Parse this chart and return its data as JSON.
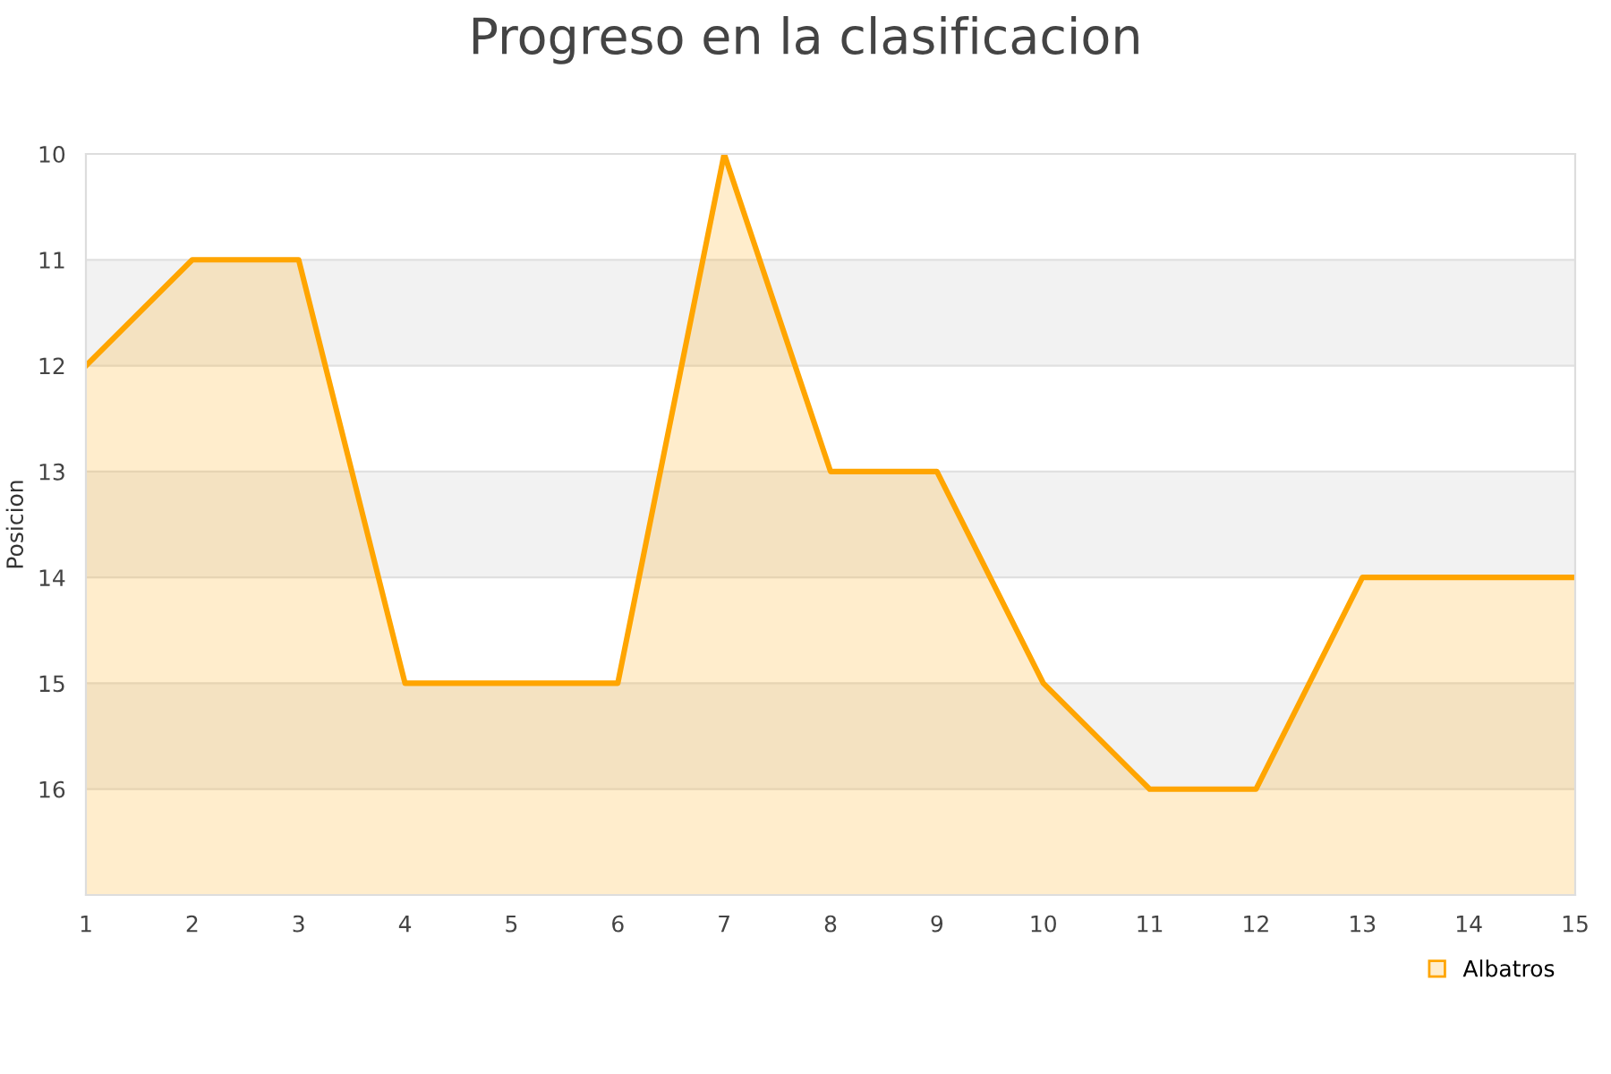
{
  "chart_data": {
    "type": "area",
    "title": "Progreso en la clasificacion",
    "ylabel": "Posicion",
    "x": [
      1,
      2,
      3,
      4,
      5,
      6,
      7,
      8,
      9,
      10,
      11,
      12,
      13,
      14,
      15
    ],
    "series": [
      {
        "name": "Albatros",
        "color": "#ffa500",
        "values": [
          12,
          11,
          11,
          15,
          15,
          15,
          10,
          13,
          13,
          15,
          16,
          16,
          14,
          14,
          14
        ]
      }
    ],
    "xlim": [
      1,
      15
    ],
    "xticks": [
      1,
      2,
      3,
      4,
      5,
      6,
      7,
      8,
      9,
      10,
      11,
      12,
      13,
      14,
      15
    ],
    "ylim": [
      17,
      10
    ],
    "yticks": [
      10,
      11,
      12,
      13,
      14,
      15,
      16
    ],
    "bands": [
      {
        "axis": "y",
        "from": 11,
        "to": 12,
        "color": "#f2f2f2"
      },
      {
        "axis": "y",
        "from": 13,
        "to": 14,
        "color": "#f2f2f2"
      },
      {
        "axis": "y",
        "from": 15,
        "to": 16,
        "color": "#f2f2f2"
      }
    ],
    "grid": "y",
    "legend": "bottom right"
  }
}
